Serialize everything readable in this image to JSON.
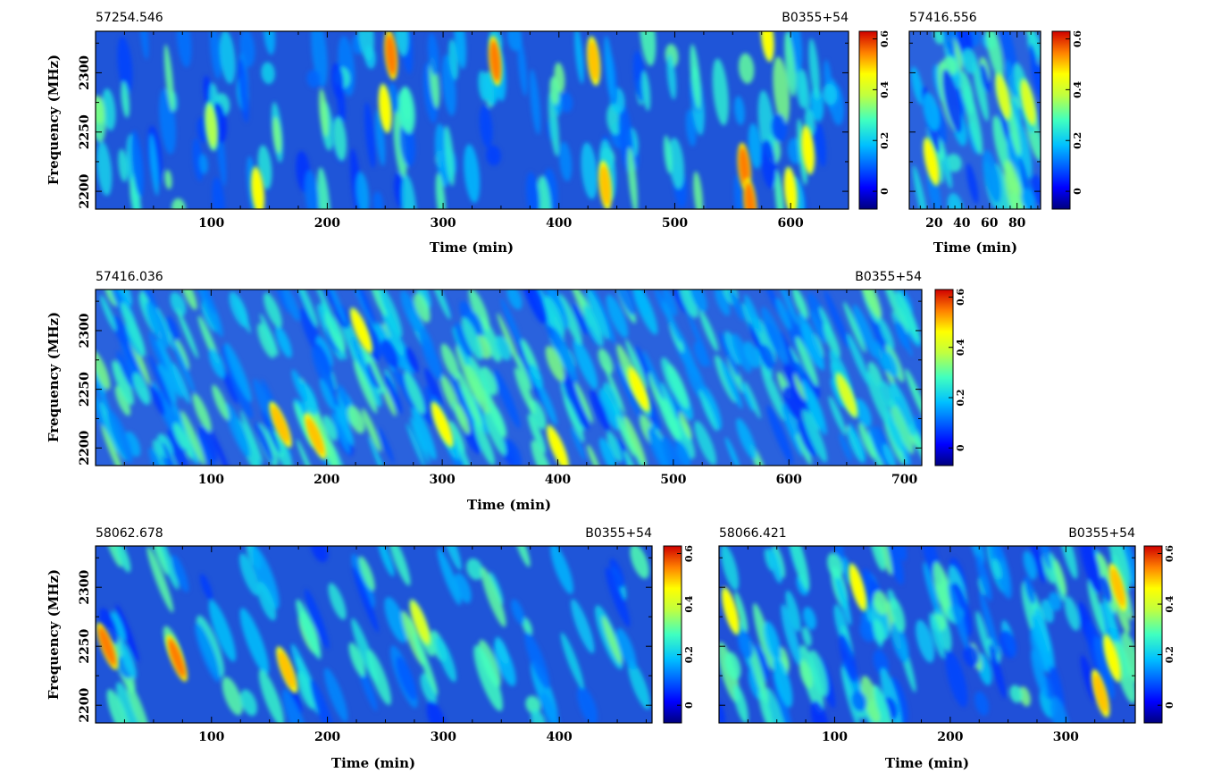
{
  "figure": {
    "panels": [
      {
        "id": "p1",
        "epoch": "57254.546",
        "source": "B0355+54",
        "xlabel": "Time (min)",
        "ylabel": "Frequency (MHz)"
      },
      {
        "id": "p2",
        "epoch": "57416.556",
        "source": "",
        "xlabel": "Time (min)",
        "ylabel": ""
      },
      {
        "id": "p3",
        "epoch": "57416.036",
        "source": "B0355+54",
        "xlabel": "Time (min)",
        "ylabel": "Frequency (MHz)"
      },
      {
        "id": "p4",
        "epoch": "58062.678",
        "source": "B0355+54",
        "xlabel": "Time (min)",
        "ylabel": "Frequency (MHz)"
      },
      {
        "id": "p5",
        "epoch": "58066.421",
        "source": "B0355+54",
        "xlabel": "Time (min)",
        "ylabel": ""
      }
    ],
    "colors": {
      "cmap": [
        "#00007f",
        "#0000ff",
        "#0080ff",
        "#00ffff",
        "#80ff80",
        "#ffff00",
        "#ff8000",
        "#ff0000",
        "#7f0000"
      ],
      "frame": "#000000"
    }
  },
  "chart_data": [
    {
      "type": "heatmap",
      "title": "57254.546",
      "source": "B0355+54",
      "xlabel": "Time (min)",
      "ylabel": "Frequency (MHz)",
      "xlim": [
        0,
        650
      ],
      "ylim": [
        2185,
        2335
      ],
      "xticks": [
        100,
        200,
        300,
        400,
        500,
        600
      ],
      "yticks": [
        2200,
        2250,
        2300
      ],
      "colorbar": {
        "range": [
          -0.07,
          0.63
        ],
        "ticks": [
          0,
          0.2,
          0.4,
          0.6
        ]
      },
      "scintles": [
        [
          100,
          2255,
          0.4
        ],
        [
          140,
          2200,
          0.5
        ],
        [
          255,
          2315,
          0.6
        ],
        [
          250,
          2270,
          0.5
        ],
        [
          345,
          2310,
          0.6
        ],
        [
          430,
          2310,
          0.55
        ],
        [
          440,
          2205,
          0.55
        ],
        [
          560,
          2220,
          0.6
        ],
        [
          565,
          2190,
          0.6
        ],
        [
          600,
          2200,
          0.5
        ],
        [
          580,
          2330,
          0.5
        ],
        [
          615,
          2235,
          0.5
        ]
      ]
    },
    {
      "type": "heatmap",
      "title": "57416.556",
      "xlabel": "Time (min)",
      "xlim": [
        2,
        97
      ],
      "ylim": [
        2185,
        2335
      ],
      "xticks": [
        20,
        40,
        60,
        80
      ],
      "yticks": [],
      "colorbar": {
        "range": [
          -0.07,
          0.63
        ],
        "ticks": [
          0,
          0.2,
          0.4,
          0.6
        ]
      },
      "scintles": [
        [
          18,
          2225,
          0.5
        ],
        [
          70,
          2280,
          0.45
        ],
        [
          88,
          2275,
          0.45
        ]
      ]
    },
    {
      "type": "heatmap",
      "title": "57416.036",
      "source": "B0355+54",
      "xlabel": "Time (min)",
      "ylabel": "Frequency (MHz)",
      "xlim": [
        0,
        715
      ],
      "ylim": [
        2185,
        2335
      ],
      "xticks": [
        100,
        200,
        300,
        400,
        500,
        600,
        700
      ],
      "yticks": [
        2200,
        2250,
        2300
      ],
      "colorbar": {
        "range": [
          -0.07,
          0.63
        ],
        "ticks": [
          0,
          0.2,
          0.4,
          0.6
        ]
      },
      "scintles": [
        [
          160,
          2220,
          0.55
        ],
        [
          190,
          2210,
          0.55
        ],
        [
          230,
          2300,
          0.5
        ],
        [
          300,
          2220,
          0.5
        ],
        [
          400,
          2200,
          0.5
        ],
        [
          470,
          2250,
          0.5
        ],
        [
          650,
          2245,
          0.45
        ]
      ]
    },
    {
      "type": "heatmap",
      "title": "58062.678",
      "source": "B0355+54",
      "xlabel": "Time (min)",
      "ylabel": "Frequency (MHz)",
      "xlim": [
        0,
        480
      ],
      "ylim": [
        2185,
        2335
      ],
      "xticks": [
        100,
        200,
        300,
        400
      ],
      "yticks": [
        2200,
        2250,
        2300
      ],
      "colorbar": {
        "range": [
          -0.07,
          0.63
        ],
        "ticks": [
          0,
          0.2,
          0.4,
          0.6
        ]
      },
      "scintles": [
        [
          10,
          2250,
          0.6
        ],
        [
          70,
          2240,
          0.6
        ],
        [
          165,
          2230,
          0.55
        ],
        [
          280,
          2270,
          0.45
        ]
      ]
    },
    {
      "type": "heatmap",
      "title": "58066.421",
      "source": "B0355+54",
      "xlabel": "Time (min)",
      "xlim": [
        0,
        360
      ],
      "ylim": [
        2185,
        2335
      ],
      "xticks": [
        100,
        200,
        300
      ],
      "yticks": [],
      "colorbar": {
        "range": [
          -0.07,
          0.63
        ],
        "ticks": [
          0,
          0.2,
          0.4,
          0.6
        ]
      },
      "scintles": [
        [
          10,
          2280,
          0.5
        ],
        [
          120,
          2300,
          0.5
        ],
        [
          330,
          2210,
          0.55
        ],
        [
          345,
          2300,
          0.55
        ],
        [
          340,
          2240,
          0.5
        ]
      ]
    }
  ]
}
